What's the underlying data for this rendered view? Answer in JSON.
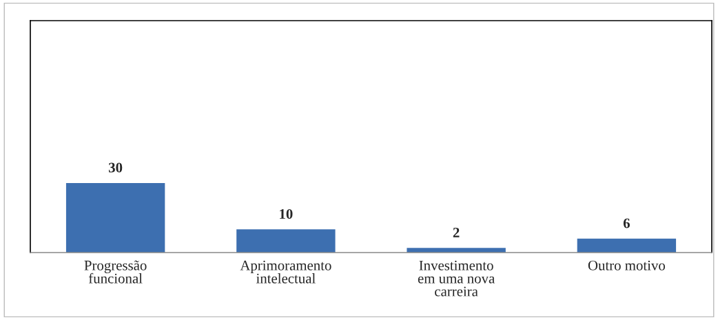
{
  "chart_data": {
    "type": "bar",
    "categories": [
      "Progressão\nfuncional",
      "Aprimoramento\nintelectual",
      "Investimento\nem uma nova\ncarreira",
      "Outro motivo"
    ],
    "values": [
      30,
      10,
      2,
      6
    ],
    "color": "#3d6fb0",
    "ylim": [
      0,
      100
    ],
    "data_labels": true,
    "tick_labels": "x",
    "grid": false,
    "legend": false
  }
}
